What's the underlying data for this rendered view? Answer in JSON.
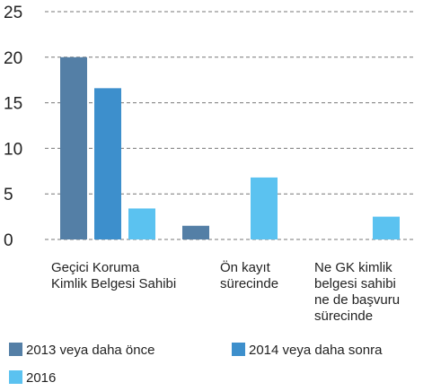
{
  "chart_data": {
    "type": "bar",
    "categories": [
      "Geçici Koruma\nKimlik Belgesi Sahibi",
      "Ön kayıt\nsürecinde",
      "Ne GK kimlik\nbelgesi sahibi\nne de başvuru\nsürecinde"
    ],
    "series": [
      {
        "name": "2013 veya daha önce",
        "color": "#547fa6",
        "values": [
          20,
          1.5,
          null
        ]
      },
      {
        "name": "2014 veya daha sonra",
        "color": "#3d8fcc",
        "values": [
          16.6,
          null,
          null
        ]
      },
      {
        "name": "2016",
        "color": "#5bc2f0",
        "values": [
          3.4,
          6.8,
          2.5
        ]
      }
    ],
    "ylim": [
      0,
      25
    ],
    "yticks": [
      0,
      5,
      10,
      15,
      20,
      25
    ],
    "grid": true
  }
}
